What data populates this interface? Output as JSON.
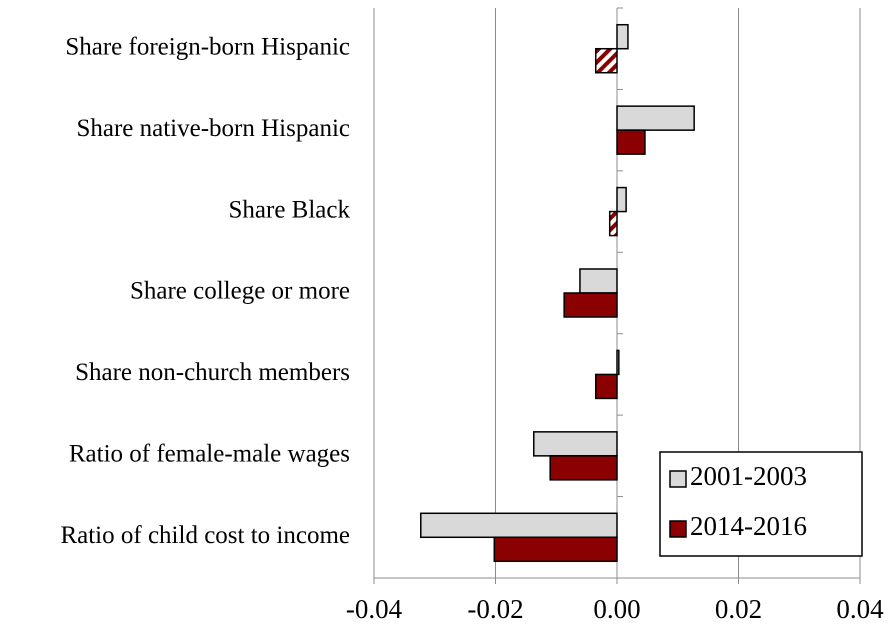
{
  "chart_data": {
    "type": "hbar",
    "categories": [
      "Share foreign-born Hispanic",
      "Share native-born Hispanic",
      "Share Black",
      "Share college or more",
      "Share non-church members",
      "Ratio of female-male wages",
      "Ratio of child cost to income"
    ],
    "series": [
      {
        "name": "2001-2003",
        "color": "#d9d9d9",
        "values": [
          0.0018,
          0.0127,
          0.0015,
          -0.0061,
          0.0003,
          -0.0137,
          -0.0323
        ],
        "hatched": [
          false,
          false,
          false,
          false,
          false,
          false,
          false
        ]
      },
      {
        "name": "2014-2016",
        "color": "#8b0000",
        "values": [
          -0.0035,
          0.0046,
          -0.0012,
          -0.0087,
          -0.0035,
          -0.011,
          -0.0202
        ],
        "hatched": [
          true,
          false,
          true,
          false,
          false,
          false,
          false
        ]
      }
    ],
    "xlim": [
      -0.04,
      0.04
    ],
    "xticks": [
      -0.04,
      -0.02,
      {
        "value": 0,
        "label": "0.00"
      },
      0.02,
      0.04
    ],
    "grid": true,
    "legend": "bottom-right"
  }
}
